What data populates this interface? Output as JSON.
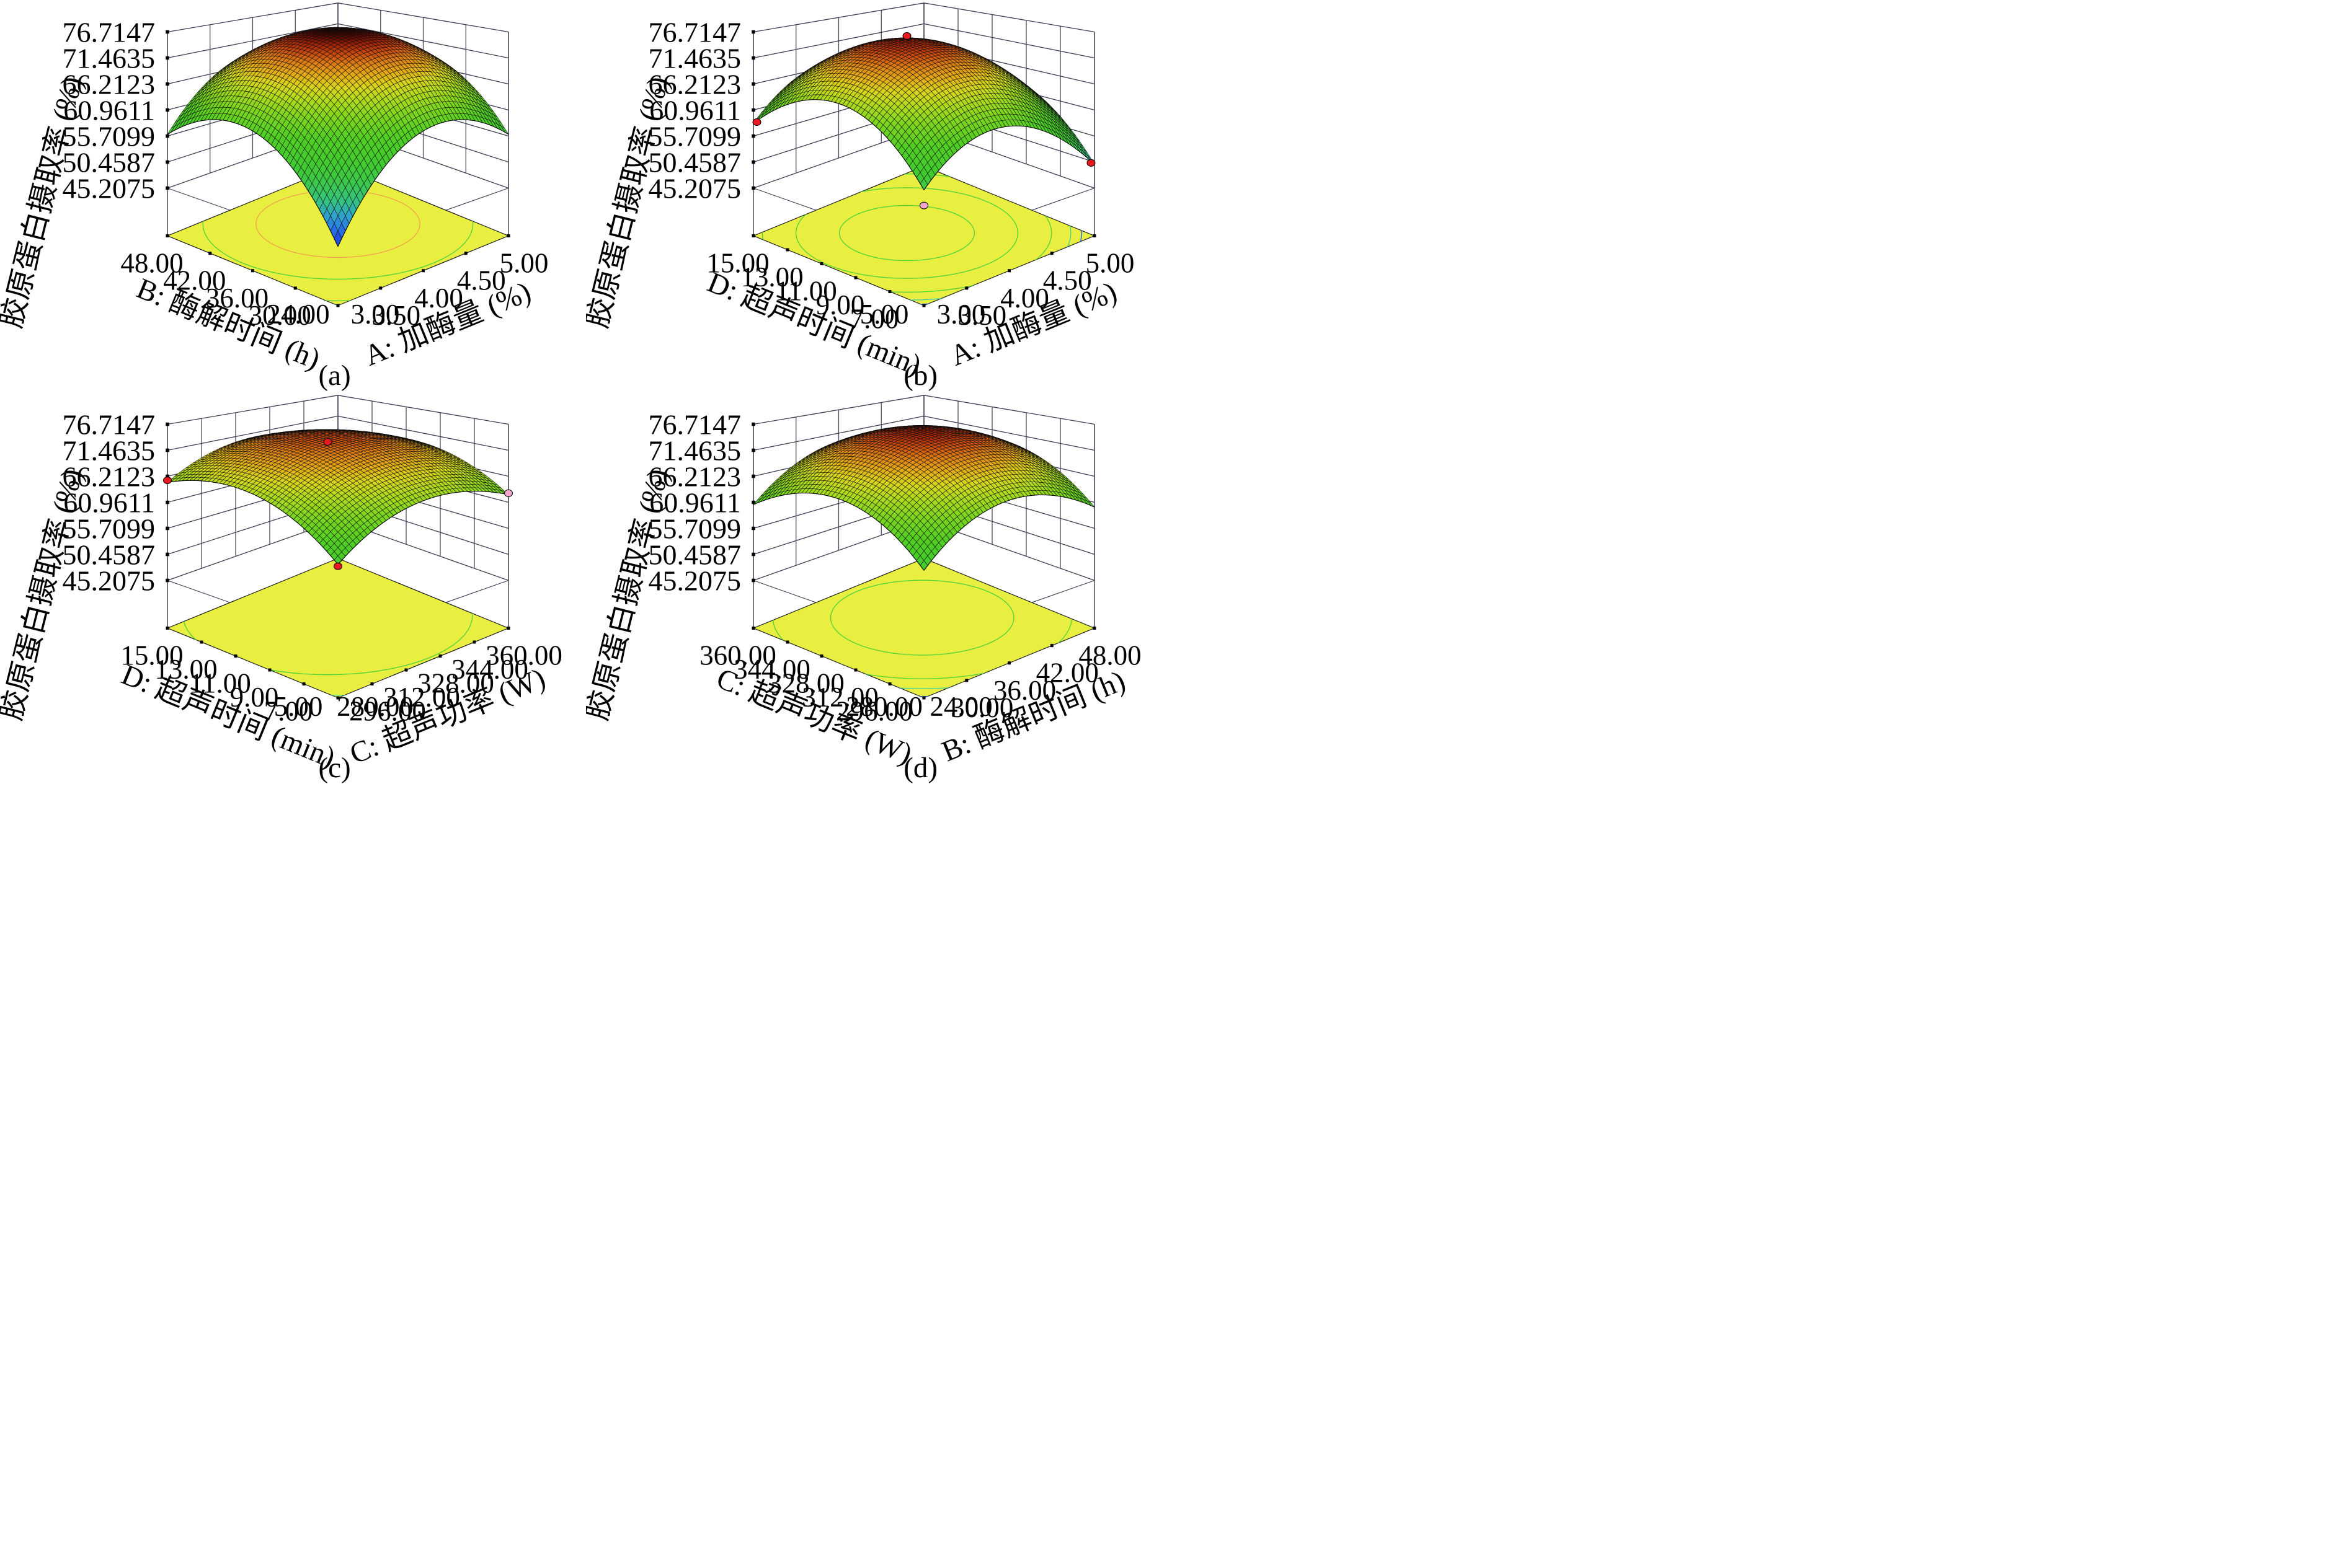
{
  "figure": {
    "captions": [
      "(a)",
      "(b)",
      "(c)",
      "(d)"
    ]
  },
  "z_axis": {
    "label": "胶原蛋白摄取率 (%)",
    "ticks": [
      "76.7147",
      "71.4635",
      "66.2123",
      "60.9611",
      "55.7099",
      "50.4587",
      "45.2075"
    ]
  },
  "colors": {
    "floor": "#e8ef40",
    "contour_green": "#4ad23a",
    "contour_teal": "#3ed2a0",
    "contour_blue": "#2e6ce8",
    "contour_orange": "#f2a04e",
    "line": "#3c3c52",
    "dot_red": "#e8191f",
    "dot_pink": "#f2a6ce",
    "text": "#000000"
  },
  "panels": [
    {
      "id": "a",
      "caption": "(a)",
      "left_axis": {
        "label": "B: 酶解时间 (h)",
        "ticks": [
          "48.00",
          "42.00",
          "36.00",
          "30.00",
          "24.00"
        ]
      },
      "right_axis": {
        "label": "A: 加酶量 (%)",
        "ticks": [
          "3.00",
          "3.50",
          "4.00",
          "4.50",
          "5.00"
        ]
      },
      "surface": {
        "c": 45.5,
        "au": 52.25,
        "av": 52.25,
        "quu": -41.7,
        "qvv": -41.7,
        "quv": -5.6
      },
      "peak": {
        "u": 0.585,
        "v": 0.585
      },
      "contours": [
        {
          "r": 0.34,
          "color": "orange"
        },
        {
          "r": 0.56,
          "color": "green"
        },
        {
          "r": 0.78,
          "color": "green"
        },
        {
          "r": 1.0,
          "color": "green"
        },
        {
          "r": 0.82,
          "color": "blue"
        }
      ],
      "dots": []
    },
    {
      "id": "b",
      "caption": "(b)",
      "left_axis": {
        "label": "D: 超声时间 (min)",
        "ticks": [
          "15.00",
          "13.00",
          "11.00",
          "9.00",
          "7.00",
          "5.00"
        ]
      },
      "right_axis": {
        "label": "A: 加酶量 (%)",
        "ticks": [
          "3.00",
          "3.50",
          "4.00",
          "4.50",
          "5.00"
        ]
      },
      "surface": {
        "c": 55.0,
        "au": 33.3,
        "av": 41.6,
        "quu": -38.3,
        "qvv": -38.3,
        "quv": 4.7
      },
      "peak": {
        "u": 0.47,
        "v": 0.57
      },
      "contours": [
        {
          "r": 0.28,
          "color": "green"
        },
        {
          "r": 0.46,
          "color": "green"
        },
        {
          "r": 0.6,
          "color": "green"
        },
        {
          "r": 0.68,
          "color": "teal"
        },
        {
          "r": 0.725,
          "color": "blue"
        }
      ],
      "dots": [
        {
          "u": 0.52,
          "v": 0.62,
          "dz": 0.5,
          "color": "red"
        },
        {
          "u": 0.99,
          "v": 0.01,
          "dz": -0.6,
          "color": "red"
        },
        {
          "u": 0.01,
          "v": 0.99,
          "dz": -0.5,
          "color": "red"
        },
        {
          "u": 0.0,
          "v": 0.0,
          "dz": -2.6,
          "color": "pink"
        }
      ]
    },
    {
      "id": "c",
      "caption": "(c)",
      "left_axis": {
        "label": "D: 超声时间 (min)",
        "ticks": [
          "15.00",
          "13.00",
          "11.00",
          "9.00",
          "7.00",
          "5.00"
        ]
      },
      "right_axis": {
        "label": "C: 超声功率 (W)",
        "ticks": [
          "280.00",
          "296.00",
          "312.00",
          "328.00",
          "344.00",
          "360.00"
        ]
      },
      "surface": {
        "c": 58.0,
        "au": 24.8,
        "av": 27.3,
        "quu": -20.3,
        "qvv": -20.3,
        "quv": -3.5
      },
      "peak": {
        "u": 0.56,
        "v": 0.62
      },
      "contours": [
        {
          "r": 0.6,
          "color": "green"
        },
        {
          "r": 0.81,
          "color": "teal"
        }
      ],
      "dots": [
        {
          "u": 0.56,
          "v": 0.62,
          "dz": -1.5,
          "color": "red"
        },
        {
          "u": 0.0,
          "v": 1.0,
          "dz": 0.4,
          "color": "red"
        },
        {
          "u": 0.0,
          "v": 0.0,
          "dz": -0.3,
          "color": "red"
        },
        {
          "u": 1.0,
          "v": 0.0,
          "dz": 0.3,
          "color": "pink"
        }
      ]
    },
    {
      "id": "d",
      "caption": "(d)",
      "left_axis": {
        "label": "C: 超声功率 (W)",
        "ticks": [
          "360.00",
          "344.00",
          "328.00",
          "312.00",
          "296.00",
          "280.00"
        ]
      },
      "right_axis": {
        "label": "B: 酶解时间 (h)",
        "ticks": [
          "24.00",
          "30.00",
          "36.00",
          "42.00",
          "48.00"
        ]
      },
      "surface": {
        "c": 57.0,
        "au": 30.7,
        "av": 31.2,
        "quu": -27.7,
        "qvv": -27.7,
        "quv": 1.5
      },
      "peak": {
        "u": 0.57,
        "v": 0.58
      },
      "contours": [
        {
          "r": 0.38,
          "color": "green"
        },
        {
          "r": 0.62,
          "color": "green"
        },
        {
          "r": 0.72,
          "color": "teal"
        },
        {
          "r": 0.8,
          "color": "blue"
        }
      ],
      "dots": []
    }
  ],
  "chart_data": [
    {
      "type": "surface3d",
      "panel": "(a)",
      "x_axis": {
        "label": "A: 加酶量 (%)",
        "ticks": [
          3.0,
          3.5,
          4.0,
          4.5,
          5.0
        ]
      },
      "y_axis": {
        "label": "B: 酶解时间 (h)",
        "ticks": [
          24.0,
          30.0,
          36.0,
          42.0,
          48.0
        ]
      },
      "z_axis": {
        "label": "胶原蛋白摄取率 (%)",
        "ticks": [
          45.2075,
          50.4587,
          55.7099,
          60.9611,
          66.2123,
          71.4635,
          76.7147
        ]
      },
      "z_range": [
        45.2075,
        76.7147
      ],
      "estimated_surface": {
        "corner_front": 45.5,
        "corner_right": 56.1,
        "corner_left": 56.1,
        "corner_back": 61.0,
        "peak_z": 75.8,
        "peak_at": {
          "A": 4.2,
          "B": 38.0
        }
      },
      "floor_contours": "yellow projection plane with green and orange iso-response rings",
      "design_points": []
    },
    {
      "type": "surface3d",
      "panel": "(b)",
      "x_axis": {
        "label": "A: 加酶量 (%)",
        "ticks": [
          3.0,
          3.5,
          4.0,
          4.5,
          5.0
        ]
      },
      "y_axis": {
        "label": "D: 超声时间 (min)",
        "ticks": [
          5.0,
          7.0,
          9.0,
          11.0,
          13.0,
          15.0
        ]
      },
      "z_axis": {
        "label": "胶原蛋白摄取率 (%)",
        "ticks": [
          45.2075,
          50.4587,
          55.7099,
          60.9611,
          66.2123,
          71.4635,
          76.7147
        ]
      },
      "z_range": [
        45.2075,
        76.7147
      ],
      "estimated_surface": {
        "corner_front": 55.0,
        "corner_right": 50.0,
        "corner_left": 58.9,
        "corner_back": 58.0,
        "peak_z": 74.9,
        "peak_at": {
          "A": 3.9,
          "D": 10.7
        }
      },
      "floor_contours": "yellow projection plane with green, teal and blue iso-response curves",
      "design_points": [
        {
          "A": 4.0,
          "D": 11.2,
          "z": 75.0,
          "marker": "red"
        },
        {
          "A": 5.0,
          "D": 5.1,
          "z": 50.4,
          "marker": "red"
        },
        {
          "A": 3.0,
          "D": 14.9,
          "z": 58.4,
          "marker": "red"
        },
        {
          "A": 3.0,
          "D": 5.0,
          "z": 52.4,
          "marker": "pink"
        }
      ]
    },
    {
      "type": "surface3d",
      "panel": "(c)",
      "x_axis": {
        "label": "C: 超声功率 (W)",
        "ticks": [
          280.0,
          296.0,
          312.0,
          328.0,
          344.0,
          360.0
        ]
      },
      "y_axis": {
        "label": "D: 超声时间 (min)",
        "ticks": [
          5.0,
          7.0,
          9.0,
          11.0,
          13.0,
          15.0
        ]
      },
      "z_axis": {
        "label": "胶原蛋白摄取率 (%)",
        "ticks": [
          45.2075,
          50.4587,
          55.7099,
          60.9611,
          66.2123,
          71.4635,
          76.7147
        ]
      },
      "z_range": [
        45.2075,
        76.7147
      ],
      "estimated_surface": {
        "corner_front": 58.0,
        "corner_right": 62.5,
        "corner_left": 65.0,
        "corner_back": 66.0,
        "peak_z": 73.5,
        "peak_at": {
          "C": 324.8,
          "D": 11.2
        }
      },
      "floor_contours": "yellow projection plane with one large green ring and a teal arc",
      "design_points": [
        {
          "C": 324.8,
          "D": 11.2,
          "z": 72.0,
          "marker": "red"
        },
        {
          "C": 280.0,
          "D": 15.0,
          "z": 65.4,
          "marker": "red"
        },
        {
          "C": 280.0,
          "D": 5.0,
          "z": 57.7,
          "marker": "red"
        },
        {
          "C": 360.0,
          "D": 5.0,
          "z": 62.8,
          "marker": "pink"
        }
      ]
    },
    {
      "type": "surface3d",
      "panel": "(d)",
      "x_axis": {
        "label": "B: 酶解时间 (h)",
        "ticks": [
          24.0,
          30.0,
          36.0,
          42.0,
          48.0
        ]
      },
      "y_axis": {
        "label": "C: 超声功率 (W)",
        "ticks": [
          280.0,
          296.0,
          312.0,
          328.0,
          344.0,
          360.0
        ]
      },
      "z_axis": {
        "label": "胶原蛋白摄取率 (%)",
        "ticks": [
          45.2075,
          50.4587,
          55.7099,
          60.9611,
          66.2123,
          71.4635,
          76.7147
        ]
      },
      "z_range": [
        45.2075,
        76.7147
      ],
      "estimated_surface": {
        "corner_front": 57.0,
        "corner_right": 60.0,
        "corner_left": 60.5,
        "corner_back": 65.0,
        "peak_z": 74.8,
        "peak_at": {
          "B": 37.7,
          "C": 326.4
        }
      },
      "floor_contours": "yellow projection plane with green, teal and blue iso-response rings",
      "design_points": []
    }
  ]
}
